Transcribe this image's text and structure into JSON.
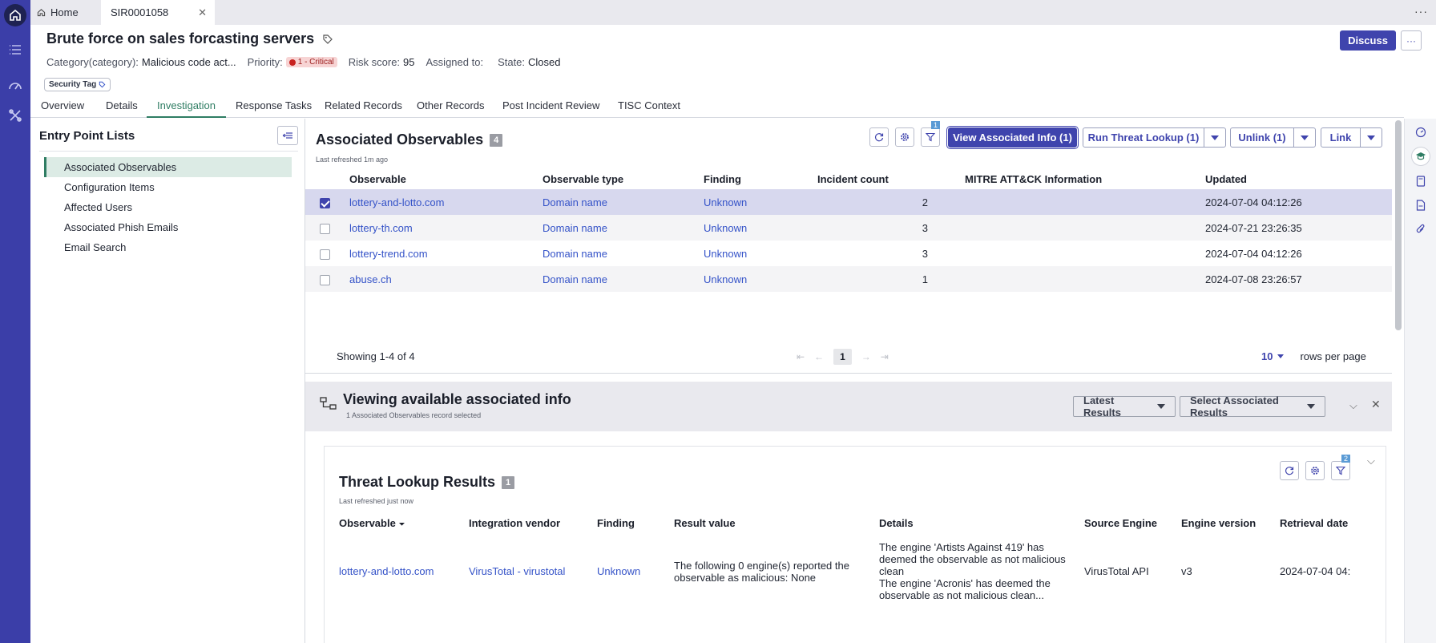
{
  "tabs": {
    "home_label": "Home",
    "record_label": "SIR0001058"
  },
  "header": {
    "title": "Brute force on sales forcasting servers",
    "category_label": "Category(category):",
    "category_value": "Malicious code act...",
    "priority_label": "Priority:",
    "priority_value": "1 - Critical",
    "risk_label": "Risk score:",
    "risk_value": "95",
    "assigned_label": "Assigned to:",
    "assigned_value": "",
    "state_label": "State:",
    "state_value": "Closed",
    "security_tag": "Security Tag",
    "discuss_label": "Discuss",
    "more_label": "···"
  },
  "section_tabs": [
    "Overview",
    "Details",
    "Investigation",
    "Response Tasks",
    "Related Records",
    "Other Records",
    "Post Incident Review",
    "TISC Context"
  ],
  "active_tab": "Investigation",
  "entry_points": {
    "title": "Entry Point Lists",
    "items": [
      "Associated Observables",
      "Configuration Items",
      "Affected Users",
      "Associated Phish Emails",
      "Email Search"
    ]
  },
  "observables": {
    "title": "Associated Observables",
    "count": "4",
    "refreshed": "Last refreshed 1m ago",
    "filter_badge": "1",
    "buttons": {
      "view": "View Associated Info (1)",
      "run": "Run Threat Lookup (1)",
      "unlink": "Unlink (1)",
      "link": "Link"
    },
    "columns": [
      "Observable",
      "Observable type",
      "Finding",
      "Incident count",
      "MITRE ATT&CK Information",
      "Updated"
    ],
    "rows": [
      {
        "observable": "lottery-and-lotto.com",
        "type": "Domain name",
        "finding": "Unknown",
        "count": "2",
        "mitre": "",
        "updated": "2024-07-04 04:12:26",
        "checked": true
      },
      {
        "observable": "lottery-th.com",
        "type": "Domain name",
        "finding": "Unknown",
        "count": "3",
        "mitre": "",
        "updated": "2024-07-21 23:26:35",
        "checked": false
      },
      {
        "observable": "lottery-trend.com",
        "type": "Domain name",
        "finding": "Unknown",
        "count": "3",
        "mitre": "",
        "updated": "2024-07-04 04:12:26",
        "checked": false
      },
      {
        "observable": "abuse.ch",
        "type": "Domain name",
        "finding": "Unknown",
        "count": "1",
        "mitre": "",
        "updated": "2024-07-08 23:26:57",
        "checked": false
      }
    ],
    "pager": {
      "showing": "Showing 1-4 of 4",
      "page": "1",
      "rows_value": "10",
      "rows_label": "rows per page"
    }
  },
  "associated_info": {
    "title": "Viewing available associated info",
    "subtitle": "1 Associated Observables record selected",
    "latest_results": "Latest Results",
    "select_results": "Select Associated Results"
  },
  "threat_lookup": {
    "title": "Threat Lookup Results",
    "count": "1",
    "refreshed": "Last refreshed just now",
    "filter_badge": "2",
    "columns": [
      "Observable",
      "Integration vendor",
      "Finding",
      "Result value",
      "Details",
      "Source Engine",
      "Engine version",
      "Retrieval date"
    ],
    "row": {
      "observable": "lottery-and-lotto.com",
      "vendor": "VirusTotal - virustotal",
      "finding": "Unknown",
      "result": "The following 0 engine(s) reported the observable as malicious: None",
      "details_1": "The engine 'Artists Against 419' has deemed the observable as not malicious clean",
      "details_2": "The engine 'Acronis' has deemed the observable as not malicious clean...",
      "engine": "VirusTotal API",
      "version": "v3",
      "date": "2024-07-04 04:"
    }
  },
  "colors": {
    "brand": "#3f44ad",
    "rail": "#3b3ea8",
    "active_tab": "#2f7d63",
    "link": "#3553c8",
    "critical": "#c8221f"
  }
}
